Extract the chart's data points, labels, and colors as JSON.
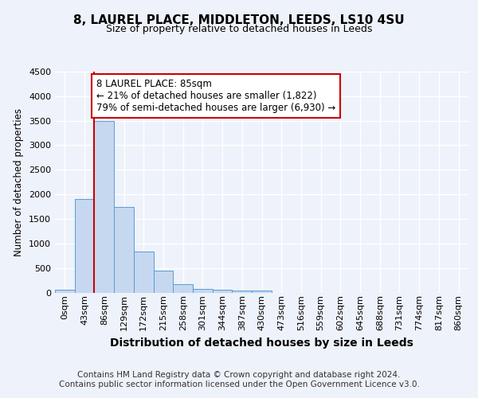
{
  "title1": "8, LAUREL PLACE, MIDDLETON, LEEDS, LS10 4SU",
  "title2": "Size of property relative to detached houses in Leeds",
  "xlabel": "Distribution of detached houses by size in Leeds",
  "ylabel": "Number of detached properties",
  "categories": [
    "0sqm",
    "43sqm",
    "86sqm",
    "129sqm",
    "172sqm",
    "215sqm",
    "258sqm",
    "301sqm",
    "344sqm",
    "387sqm",
    "430sqm",
    "473sqm",
    "516sqm",
    "559sqm",
    "602sqm",
    "645sqm",
    "688sqm",
    "731sqm",
    "774sqm",
    "817sqm",
    "860sqm"
  ],
  "values": [
    50,
    1900,
    3500,
    1750,
    840,
    440,
    165,
    80,
    55,
    45,
    35,
    0,
    0,
    0,
    0,
    0,
    0,
    0,
    0,
    0,
    0
  ],
  "bar_color": "#c5d8f0",
  "bar_edge_color": "#5b9bd5",
  "ylim": [
    0,
    4500
  ],
  "yticks": [
    0,
    500,
    1000,
    1500,
    2000,
    2500,
    3000,
    3500,
    4000,
    4500
  ],
  "property_line_x": 2,
  "property_line_color": "#cc0000",
  "annotation_text": "8 LAUREL PLACE: 85sqm\n← 21% of detached houses are smaller (1,822)\n79% of semi-detached houses are larger (6,930) →",
  "annotation_box_color": "#cc0000",
  "footer_text": "Contains HM Land Registry data © Crown copyright and database right 2024.\nContains public sector information licensed under the Open Government Licence v3.0.",
  "bg_color": "#eef2fa",
  "plot_bg_color": "#eef2fa",
  "grid_color": "#ffffff",
  "title1_fontsize": 11,
  "title2_fontsize": 9,
  "ylabel_fontsize": 8.5,
  "xlabel_fontsize": 10,
  "tick_fontsize": 8,
  "annotation_fontsize": 8.5,
  "footer_fontsize": 7.5
}
